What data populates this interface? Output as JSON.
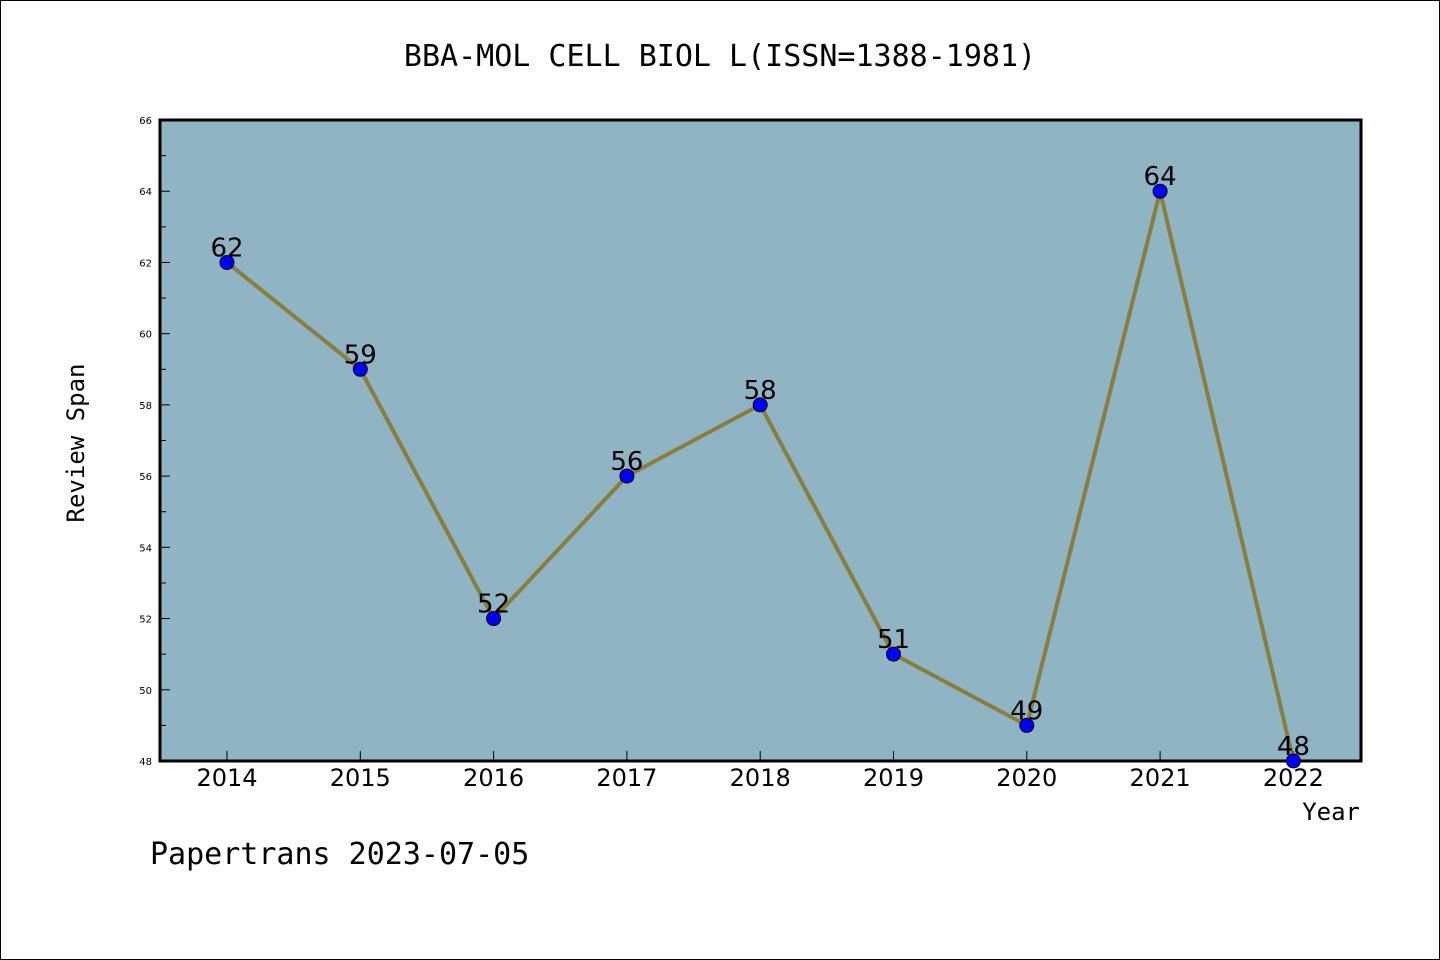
{
  "chart_data": {
    "type": "line",
    "title": "BBA-MOL CELL BIOL L(ISSN=1388-1981)",
    "xlabel": "Year",
    "ylabel": "Review Span",
    "categories": [
      "2014",
      "2015",
      "2016",
      "2017",
      "2018",
      "2019",
      "2020",
      "2021",
      "2022"
    ],
    "series": [
      {
        "values": [
          62,
          59,
          52,
          56,
          58,
          51,
          49,
          64,
          48
        ]
      }
    ],
    "data_labels": [
      "62",
      "59",
      "52",
      "56",
      "58",
      "51",
      "49",
      "64",
      "48"
    ],
    "ylim": [
      48,
      66
    ],
    "yticks": [
      "48",
      "50",
      "52",
      "54",
      "56",
      "58",
      "60",
      "62",
      "64",
      "66"
    ],
    "grid": false,
    "colors": {
      "plot_background": "#8fb5c4",
      "line": "#8b7d3a",
      "marker": "#0000ff"
    }
  },
  "footer": "Papertrans 2023-07-05"
}
